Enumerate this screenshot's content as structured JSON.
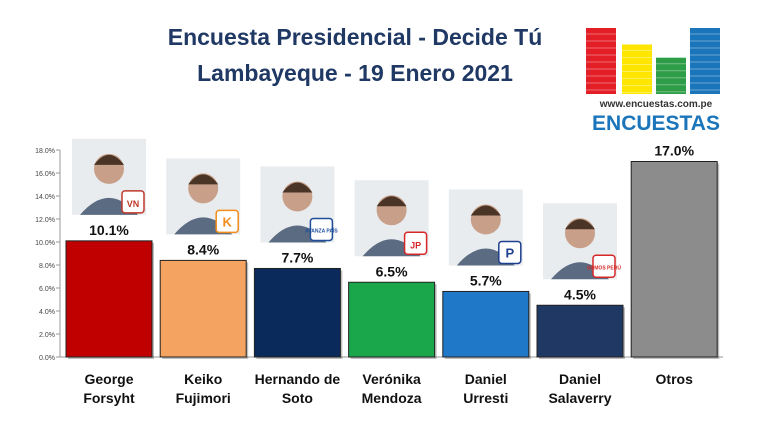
{
  "header": {
    "title_line1": "Encuesta Presidencial - Decide Tú",
    "title_line2": "Lambayeque - 19 Enero 2021"
  },
  "logo": {
    "url_text": "www.encuestas.com.pe",
    "brand_text": "ENCUESTAS",
    "bar_colors": [
      "#e41e26",
      "#ffe600",
      "#2e9d47",
      "#1b75bb"
    ],
    "bar_levels": [
      1.0,
      0.75,
      0.55,
      1.0
    ]
  },
  "candidates": [
    {
      "line1": "George",
      "line2": "Forsyht",
      "badge": "VN",
      "badge_color": "#c0392b"
    },
    {
      "line1": "Keiko",
      "line2": "Fujimori",
      "badge": "K",
      "badge_color": "#f28c1a"
    },
    {
      "line1": "Hernando de",
      "line2": "Soto",
      "badge": "AVANZA PAÍS",
      "badge_color": "#1f4e9a"
    },
    {
      "line1": "Verónika",
      "line2": "Mendoza",
      "badge": "JP",
      "badge_color": "#d62828"
    },
    {
      "line1": "Daniel",
      "line2": "Urresti",
      "badge": "P",
      "badge_color": "#1f3f8f"
    },
    {
      "line1": "Daniel",
      "line2": "Salaverry",
      "badge": "SOMOS PERÚ",
      "badge_color": "#d62828"
    },
    {
      "line1": "Otros",
      "line2": "",
      "badge": "",
      "badge_color": ""
    }
  ],
  "chart_data": {
    "type": "bar",
    "categories": [
      "George Forsyht",
      "Keiko Fujimori",
      "Hernando de Soto",
      "Verónika Mendoza",
      "Daniel Urresti",
      "Daniel Salaverry",
      "Otros"
    ],
    "values": [
      10.1,
      8.4,
      7.7,
      6.5,
      5.7,
      4.5,
      17.0
    ],
    "data_labels": [
      "10.1%",
      "8.4%",
      "7.7%",
      "6.5%",
      "5.7%",
      "4.5%",
      "17.0%"
    ],
    "colors": [
      "#c00000",
      "#f4a460",
      "#0b2a5c",
      "#1aa64a",
      "#1f78c8",
      "#1f3864",
      "#8c8c8c"
    ],
    "ylim": [
      0,
      18
    ],
    "yticks": [
      0,
      2,
      4,
      6,
      8,
      10,
      12,
      14,
      16,
      18
    ],
    "ytick_labels": [
      "0.0%",
      "2.0%",
      "4.0%",
      "6.0%",
      "8.0%",
      "10.0%",
      "12.0%",
      "14.0%",
      "16.0%",
      "18.0%"
    ],
    "title": "",
    "xlabel": "",
    "ylabel": "",
    "grid": false,
    "legend": "none"
  }
}
